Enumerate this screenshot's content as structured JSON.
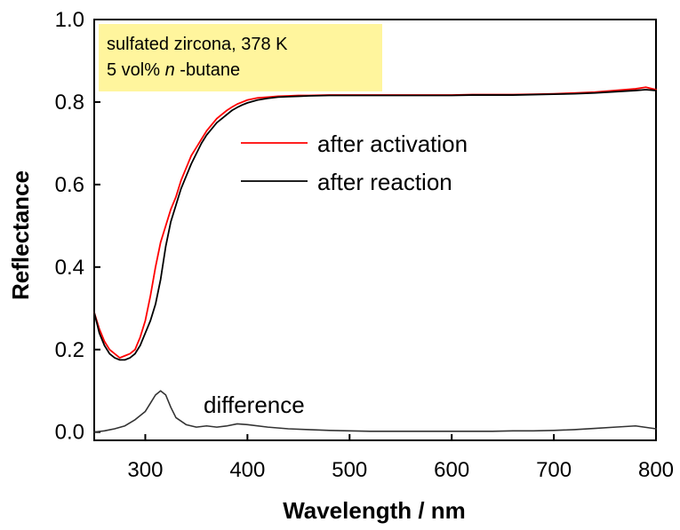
{
  "chart_data": {
    "type": "line",
    "xlabel": "Wavelength / nm",
    "ylabel": "Reflectance",
    "xlim": [
      250,
      800
    ],
    "ylim": [
      -0.02,
      1.0
    ],
    "xticks": [
      "300",
      "400",
      "500",
      "600",
      "700",
      "800"
    ],
    "yticks": [
      "0.0",
      "0.2",
      "0.4",
      "0.6",
      "0.8",
      "1.0"
    ],
    "grid": false,
    "legend_position": "upper-middle",
    "series": [
      {
        "name": "after activation",
        "color": "#ff0000",
        "x": [
          250,
          255,
          260,
          265,
          270,
          275,
          280,
          285,
          290,
          295,
          300,
          305,
          310,
          315,
          320,
          325,
          330,
          335,
          340,
          345,
          350,
          355,
          360,
          365,
          370,
          375,
          380,
          385,
          390,
          395,
          400,
          410,
          420,
          430,
          440,
          450,
          460,
          480,
          500,
          520,
          540,
          560,
          580,
          600,
          620,
          640,
          660,
          680,
          700,
          720,
          740,
          760,
          780,
          790,
          800
        ],
        "y": [
          0.29,
          0.25,
          0.22,
          0.2,
          0.19,
          0.18,
          0.185,
          0.19,
          0.2,
          0.23,
          0.27,
          0.33,
          0.4,
          0.46,
          0.5,
          0.54,
          0.57,
          0.61,
          0.64,
          0.67,
          0.69,
          0.71,
          0.73,
          0.745,
          0.76,
          0.77,
          0.78,
          0.788,
          0.795,
          0.8,
          0.805,
          0.81,
          0.812,
          0.814,
          0.815,
          0.816,
          0.816,
          0.817,
          0.817,
          0.817,
          0.817,
          0.817,
          0.817,
          0.817,
          0.818,
          0.818,
          0.818,
          0.819,
          0.82,
          0.822,
          0.824,
          0.828,
          0.832,
          0.836,
          0.83
        ]
      },
      {
        "name": "after reaction",
        "color": "#000000",
        "x": [
          250,
          255,
          260,
          265,
          270,
          275,
          280,
          285,
          290,
          295,
          300,
          305,
          310,
          315,
          320,
          325,
          330,
          335,
          340,
          345,
          350,
          355,
          360,
          365,
          370,
          375,
          380,
          385,
          390,
          395,
          400,
          410,
          420,
          430,
          440,
          450,
          460,
          480,
          500,
          520,
          540,
          560,
          580,
          600,
          620,
          640,
          660,
          680,
          700,
          720,
          740,
          760,
          780,
          790,
          800
        ],
        "y": [
          0.29,
          0.24,
          0.21,
          0.19,
          0.18,
          0.175,
          0.175,
          0.18,
          0.19,
          0.21,
          0.24,
          0.27,
          0.31,
          0.37,
          0.45,
          0.51,
          0.55,
          0.59,
          0.62,
          0.65,
          0.675,
          0.7,
          0.72,
          0.735,
          0.75,
          0.76,
          0.77,
          0.78,
          0.787,
          0.793,
          0.798,
          0.805,
          0.809,
          0.812,
          0.813,
          0.814,
          0.815,
          0.816,
          0.816,
          0.816,
          0.816,
          0.816,
          0.816,
          0.816,
          0.817,
          0.817,
          0.817,
          0.818,
          0.819,
          0.82,
          0.822,
          0.825,
          0.828,
          0.83,
          0.828
        ]
      },
      {
        "name": "difference",
        "color": "#333333",
        "x": [
          250,
          260,
          270,
          280,
          290,
          300,
          305,
          310,
          315,
          320,
          325,
          330,
          340,
          350,
          360,
          370,
          380,
          390,
          400,
          420,
          440,
          460,
          480,
          500,
          520,
          540,
          560,
          580,
          600,
          620,
          640,
          660,
          680,
          700,
          720,
          740,
          760,
          780,
          800
        ],
        "y": [
          0.0,
          0.003,
          0.008,
          0.015,
          0.03,
          0.05,
          0.07,
          0.09,
          0.1,
          0.09,
          0.06,
          0.035,
          0.018,
          0.012,
          0.015,
          0.012,
          0.015,
          0.02,
          0.018,
          0.012,
          0.008,
          0.006,
          0.004,
          0.003,
          0.002,
          0.002,
          0.002,
          0.002,
          0.002,
          0.002,
          0.002,
          0.003,
          0.003,
          0.004,
          0.006,
          0.009,
          0.012,
          0.015,
          0.008
        ]
      }
    ],
    "annotations": [
      "sulfated zircona, 378 K",
      "5 vol% ",
      "n",
      "-butane",
      "difference"
    ]
  },
  "colors": {
    "axis": "#000000",
    "info_box_fill": "#fff59d"
  }
}
